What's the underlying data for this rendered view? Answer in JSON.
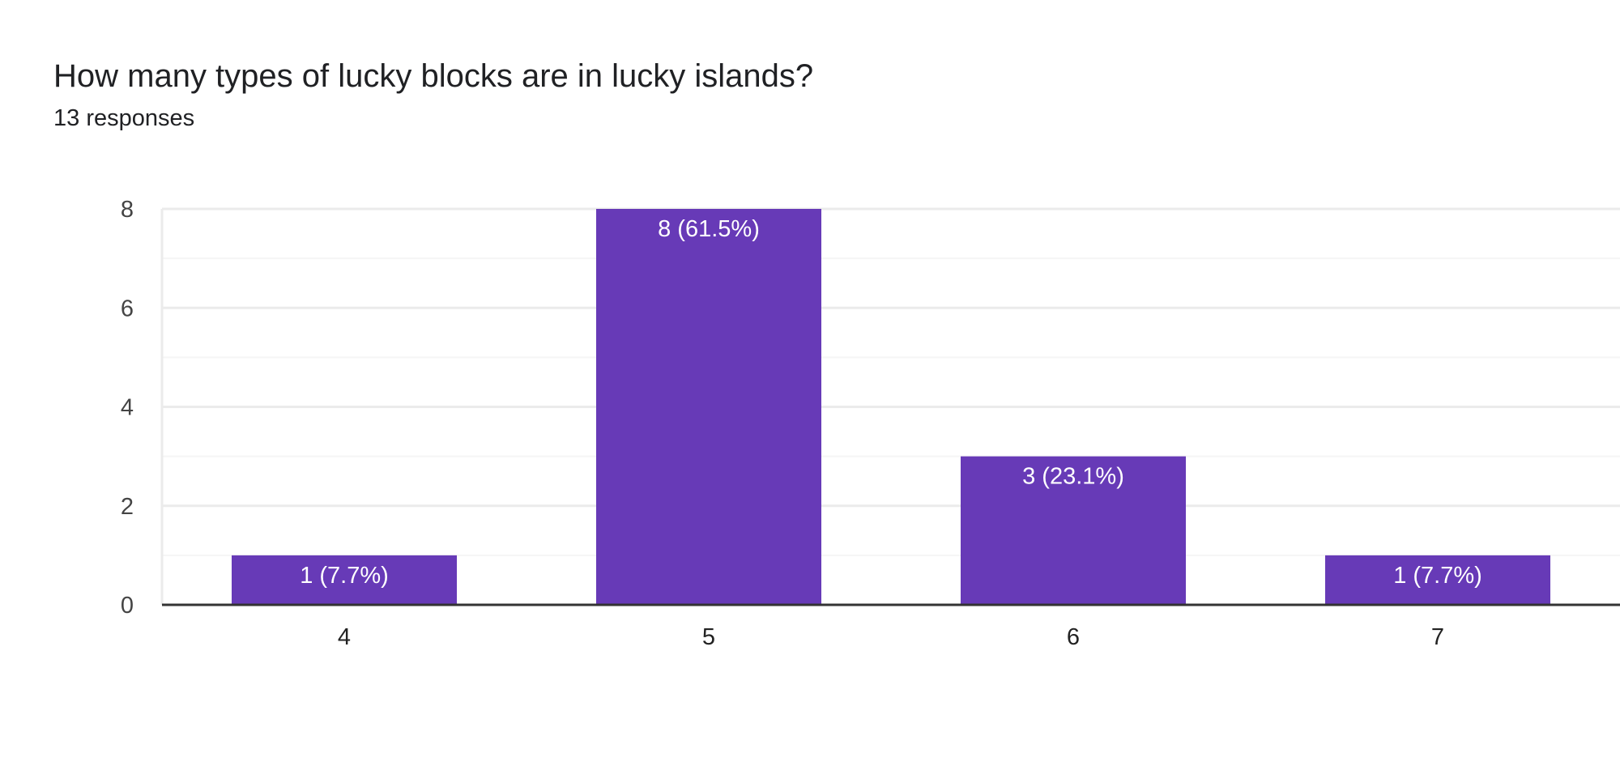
{
  "question": {
    "title": "How many types of lucky blocks are in lucky islands?",
    "responses": "13 responses"
  },
  "colors": {
    "bar": "#673ab7",
    "gridline": "#ebebeb",
    "minor_gridline": "#f5f5f5",
    "axis": "#333333"
  },
  "chart_data": {
    "type": "bar",
    "title": "How many types of lucky blocks are in lucky islands?",
    "subtitle": "13 responses",
    "categories": [
      "4",
      "5",
      "6",
      "7"
    ],
    "values": [
      1,
      8,
      3,
      1
    ],
    "data_labels": [
      "1 (7.7%)",
      "8 (61.5%)",
      "3 (23.1%)",
      "1 (7.7%)"
    ],
    "y_ticks": [
      "0",
      "2",
      "4",
      "6",
      "8"
    ],
    "ylim": [
      0,
      8
    ],
    "xlabel": "",
    "ylabel": "",
    "grid": true,
    "legend": "none"
  }
}
